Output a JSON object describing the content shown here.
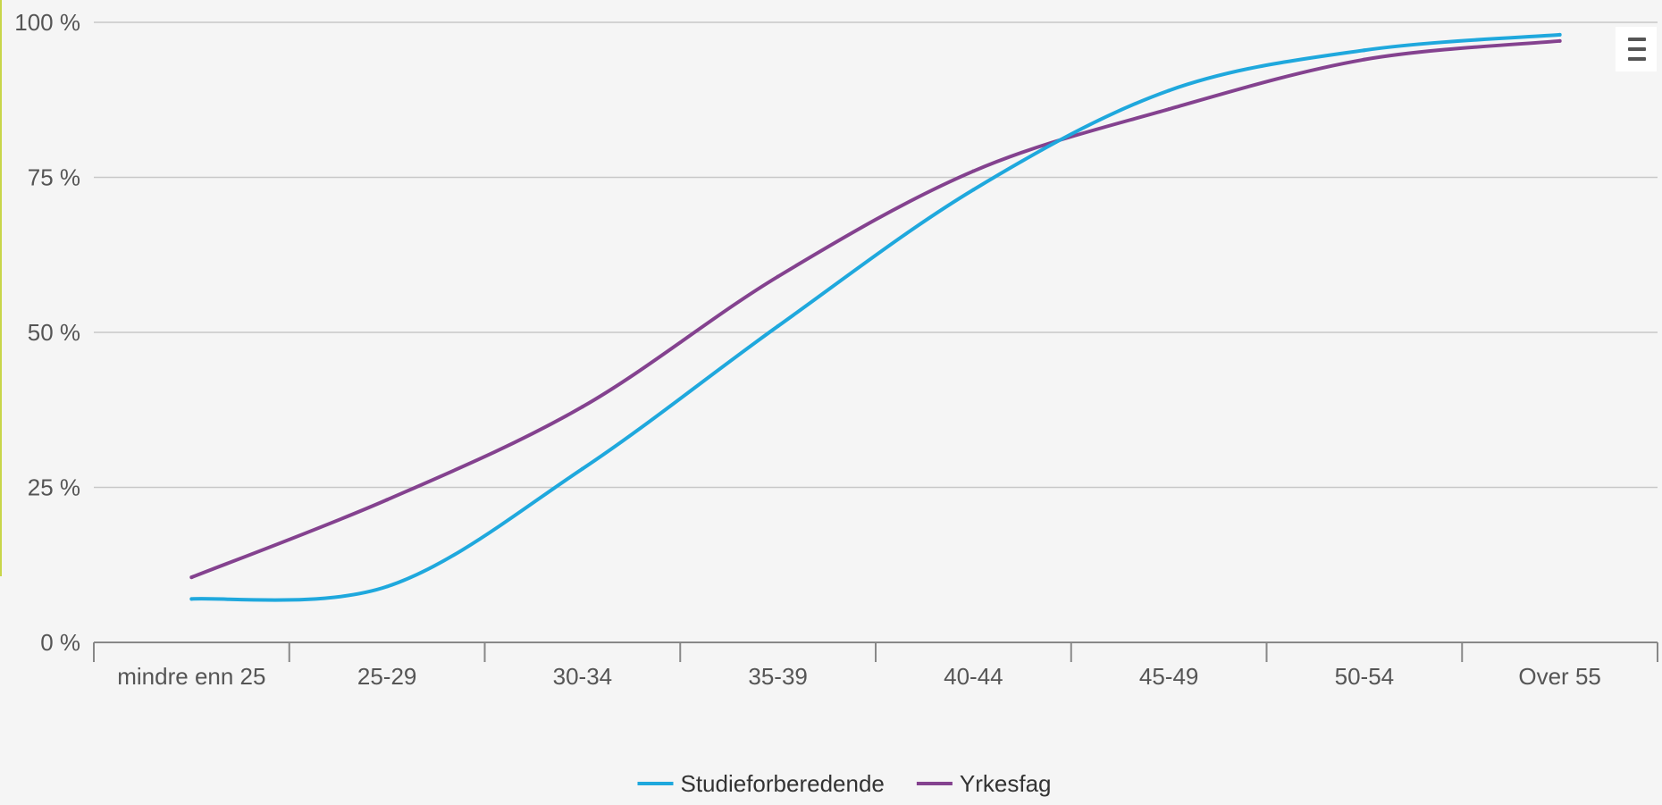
{
  "chart_data": {
    "type": "line",
    "title": "",
    "xlabel": "",
    "ylabel": "",
    "categories": [
      "mindre enn 25",
      "25-29",
      "30-34",
      "35-39",
      "40-44",
      "45-49",
      "50-54",
      "Over 55"
    ],
    "y_ticks": [
      "0 %",
      "25 %",
      "50 %",
      "75 %",
      "100 %"
    ],
    "ylim": [
      0,
      100
    ],
    "grid": true,
    "legend_position": "bottom-center",
    "series": [
      {
        "name": "Studieforberedende",
        "color": "#1fa8dd",
        "values": [
          7,
          9,
          28,
          51,
          73,
          89,
          95.5,
          98
        ]
      },
      {
        "name": "Yrkesfag",
        "color": "#84428f",
        "values": [
          10.5,
          23,
          38,
          59,
          76,
          86,
          94,
          97
        ]
      }
    ]
  },
  "menu": {
    "icon": "hamburger-menu-icon"
  }
}
